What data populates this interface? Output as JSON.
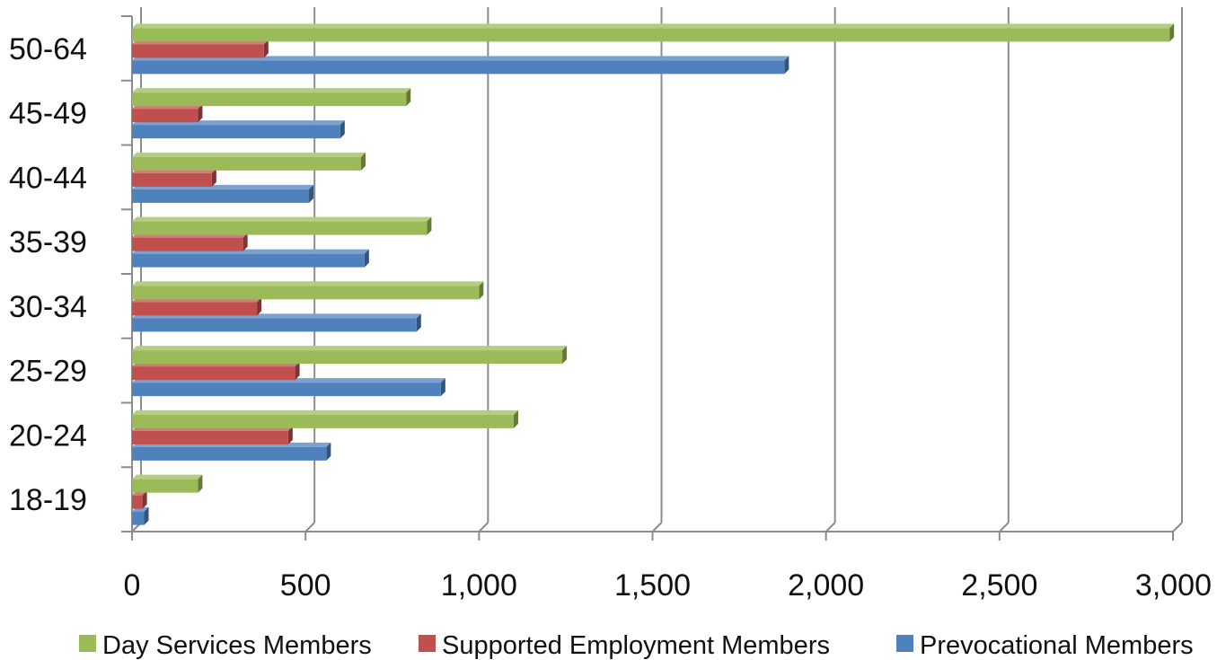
{
  "chart_data": {
    "type": "bar",
    "orientation": "horizontal",
    "style": "3d-clustered",
    "categories": [
      "18-19",
      "20-24",
      "25-29",
      "30-34",
      "35-39",
      "40-44",
      "45-49",
      "50-64"
    ],
    "series": [
      {
        "name": "Day Services Members",
        "color": "#9bbb59",
        "values": [
          190,
          1100,
          1240,
          1000,
          850,
          660,
          790,
          2990
        ]
      },
      {
        "name": "Supported Employment Members",
        "color": "#c0504d",
        "values": [
          30,
          450,
          470,
          360,
          320,
          230,
          190,
          380
        ]
      },
      {
        "name": "Prevocational Members",
        "color": "#4f81bd",
        "values": [
          35,
          560,
          890,
          820,
          670,
          510,
          600,
          1880
        ]
      }
    ],
    "x_ticks": [
      "0",
      "500",
      "1,000",
      "1,500",
      "2,000",
      "2,500",
      "3,000"
    ],
    "xlim": [
      0,
      3000
    ],
    "title": "",
    "xlabel": "",
    "ylabel": "",
    "grid": true,
    "legend_position": "bottom"
  }
}
